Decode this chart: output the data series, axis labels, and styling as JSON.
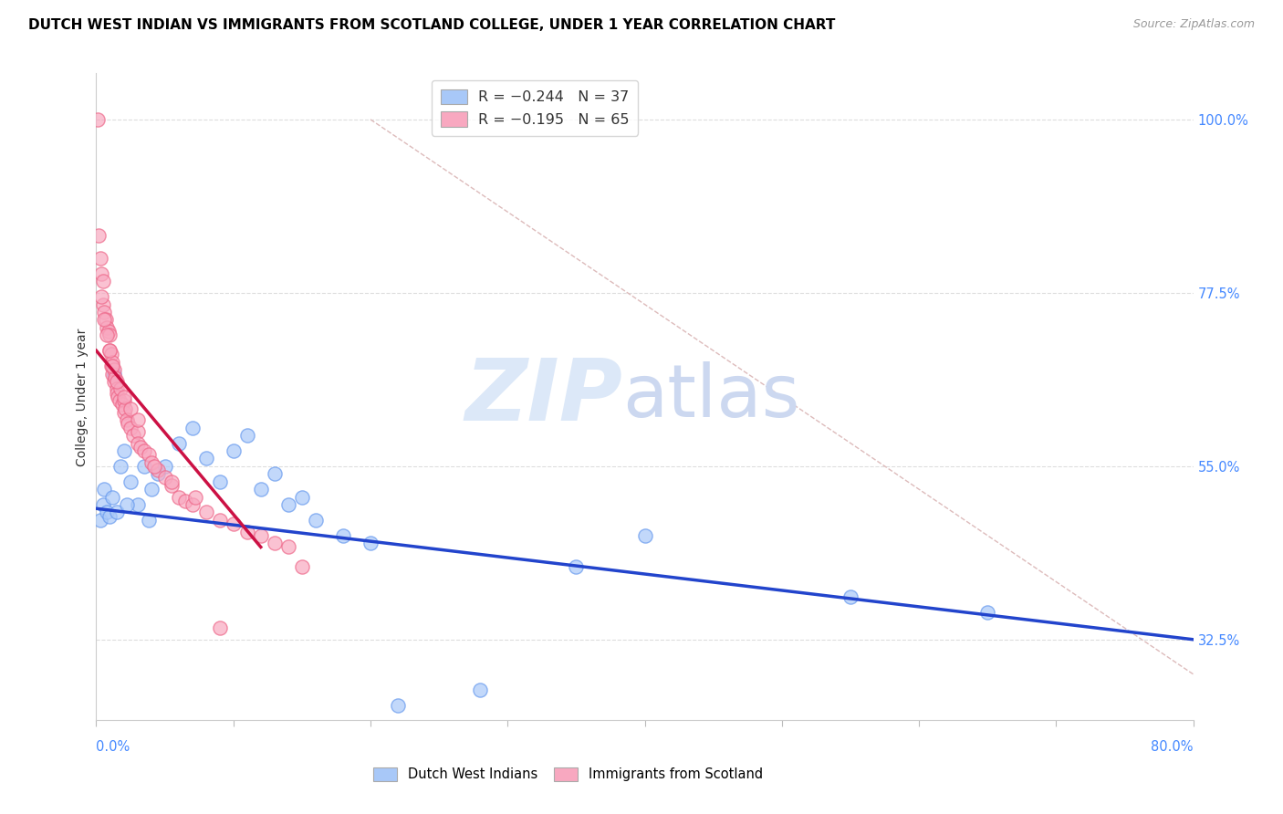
{
  "title": "DUTCH WEST INDIAN VS IMMIGRANTS FROM SCOTLAND COLLEGE, UNDER 1 YEAR CORRELATION CHART",
  "source": "Source: ZipAtlas.com",
  "ylabel": "College, Under 1 year",
  "right_yticks": [
    32.5,
    55.0,
    77.5,
    100.0
  ],
  "right_ytick_labels": [
    "32.5%",
    "55.0%",
    "77.5%",
    "100.0%"
  ],
  "xlim": [
    0.0,
    80.0
  ],
  "ylim": [
    22.0,
    106.0
  ],
  "legend_blue_r": "R = −0.244",
  "legend_blue_n": "N = 37",
  "legend_pink_r": "R = −0.195",
  "legend_pink_n": "N = 65",
  "blue_color": "#a8c8f8",
  "pink_color": "#f8a8c0",
  "blue_edge_color": "#6699ee",
  "pink_edge_color": "#ee6688",
  "blue_line_color": "#2244cc",
  "pink_line_color": "#cc1144",
  "blue_scatter_x": [
    0.3,
    0.5,
    0.6,
    0.8,
    1.0,
    1.2,
    1.5,
    1.8,
    2.0,
    2.5,
    3.0,
    3.5,
    4.0,
    4.5,
    5.0,
    6.0,
    7.0,
    8.0,
    9.0,
    10.0,
    11.0,
    12.0,
    13.0,
    14.0,
    15.0,
    16.0,
    18.0,
    20.0,
    22.0,
    28.0,
    35.0,
    40.0,
    55.0,
    65.0,
    1.3,
    2.2,
    3.8
  ],
  "blue_scatter_y": [
    48.0,
    50.0,
    52.0,
    49.0,
    48.5,
    51.0,
    49.0,
    55.0,
    57.0,
    53.0,
    50.0,
    55.0,
    52.0,
    54.0,
    55.0,
    58.0,
    60.0,
    56.0,
    53.0,
    57.0,
    59.0,
    52.0,
    54.0,
    50.0,
    51.0,
    48.0,
    46.0,
    45.0,
    24.0,
    26.0,
    42.0,
    46.0,
    38.0,
    36.0,
    67.0,
    50.0,
    48.0
  ],
  "pink_scatter_x": [
    0.1,
    0.2,
    0.3,
    0.4,
    0.5,
    0.5,
    0.6,
    0.7,
    0.8,
    0.9,
    1.0,
    1.0,
    1.1,
    1.1,
    1.2,
    1.2,
    1.3,
    1.3,
    1.4,
    1.5,
    1.5,
    1.6,
    1.7,
    1.8,
    1.9,
    2.0,
    2.0,
    2.1,
    2.2,
    2.3,
    2.5,
    2.7,
    3.0,
    3.0,
    3.2,
    3.5,
    3.8,
    4.0,
    4.5,
    5.0,
    5.5,
    6.0,
    6.5,
    7.0,
    8.0,
    9.0,
    10.0,
    11.0,
    12.0,
    13.0,
    14.0,
    0.4,
    0.6,
    0.8,
    1.0,
    1.2,
    1.5,
    2.0,
    2.5,
    3.0,
    4.2,
    5.5,
    7.2,
    9.0,
    15.0
  ],
  "pink_scatter_y": [
    100.0,
    85.0,
    82.0,
    80.0,
    79.0,
    76.0,
    75.0,
    74.0,
    73.0,
    72.5,
    72.0,
    70.0,
    69.5,
    68.0,
    68.5,
    67.0,
    67.5,
    66.0,
    66.5,
    65.0,
    64.5,
    64.0,
    63.5,
    65.0,
    63.0,
    63.5,
    62.0,
    62.5,
    61.0,
    60.5,
    60.0,
    59.0,
    59.5,
    58.0,
    57.5,
    57.0,
    56.5,
    55.5,
    54.5,
    53.5,
    52.5,
    51.0,
    50.5,
    50.0,
    49.0,
    48.0,
    47.5,
    46.5,
    46.0,
    45.0,
    44.5,
    77.0,
    74.0,
    72.0,
    70.0,
    68.0,
    66.0,
    64.0,
    62.5,
    61.0,
    55.0,
    53.0,
    51.0,
    34.0,
    42.0
  ],
  "blue_line_x": [
    0.0,
    80.0
  ],
  "blue_line_y": [
    49.5,
    32.5
  ],
  "pink_line_x": [
    0.0,
    12.0
  ],
  "pink_line_y": [
    70.0,
    44.5
  ],
  "diag_line_x": [
    20.0,
    80.0
  ],
  "diag_line_y": [
    100.0,
    28.0
  ]
}
